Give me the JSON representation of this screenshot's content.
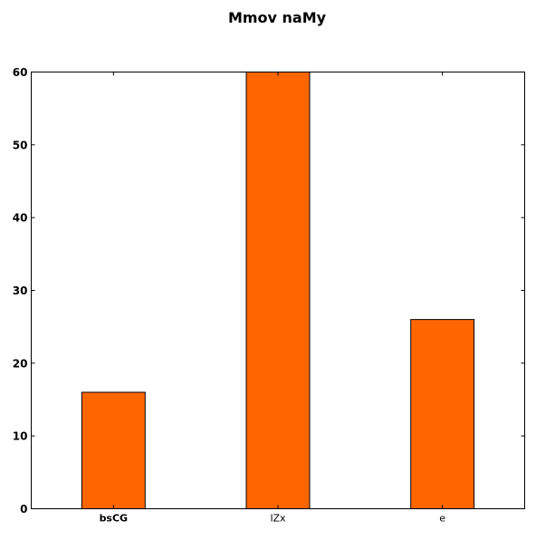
{
  "chart_data": {
    "type": "bar",
    "title": "Mmov  naMy",
    "categories": [
      "bsCG",
      "lZx",
      "e"
    ],
    "values": [
      16,
      60,
      26
    ],
    "xlabel": "",
    "ylabel": "",
    "ylim": [
      0,
      60
    ],
    "yticks": [
      0,
      10,
      20,
      30,
      40,
      50,
      60
    ],
    "bar_color": "#ff6600",
    "grid": false,
    "legend": "none"
  }
}
